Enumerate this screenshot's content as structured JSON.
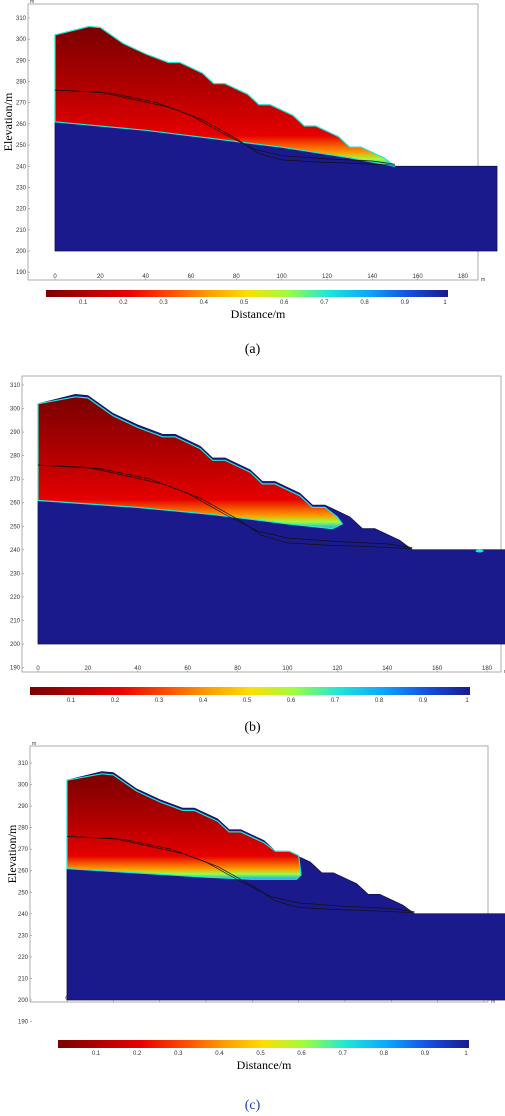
{
  "chart_data": [
    {
      "type": "heatmap",
      "caption": "(a)",
      "ylabel": "Elevation/m",
      "xlabel": "Distance/m",
      "x_unit": "m",
      "y_unit": "m",
      "xlim": [
        0,
        190
      ],
      "ylim": [
        190,
        310
      ],
      "x_ticks": [
        0,
        20,
        40,
        60,
        80,
        100,
        120,
        140,
        160,
        180
      ],
      "y_ticks": [
        190,
        200,
        210,
        220,
        230,
        240,
        250,
        260,
        270,
        280,
        290,
        300,
        310
      ],
      "colorbar_ticks": [
        "0.1",
        "0.2",
        "0.3",
        "0.4",
        "0.5",
        "0.6",
        "0.7",
        "0.8",
        "0.9",
        "1"
      ],
      "colormap_stops": [
        "#7a0000",
        "#b30000",
        "#e60000",
        "#ff4400",
        "#ff9900",
        "#ffdd00",
        "#9cff3c",
        "#1ee8d6",
        "#0aa8ff",
        "#1550e6",
        "#1a1a8c"
      ],
      "domain_outline": [
        [
          0,
          200
        ],
        [
          0,
          302
        ],
        [
          15,
          306
        ],
        [
          20,
          305.5
        ],
        [
          30,
          298
        ],
        [
          40,
          293
        ],
        [
          50,
          289
        ],
        [
          55,
          289
        ],
        [
          65,
          284
        ],
        [
          70,
          279
        ],
        [
          75,
          279
        ],
        [
          85,
          274
        ],
        [
          90,
          269
        ],
        [
          95,
          269
        ],
        [
          105,
          264
        ],
        [
          110,
          259
        ],
        [
          115,
          259
        ],
        [
          125,
          254
        ],
        [
          130,
          249
        ],
        [
          135,
          249
        ],
        [
          145,
          244
        ],
        [
          150,
          240
        ],
        [
          195,
          240
        ],
        [
          195,
          200
        ]
      ],
      "slip_surfaces": [
        [
          [
            0,
            276
          ],
          [
            20,
            275
          ],
          [
            50,
            268
          ],
          [
            65,
            262
          ],
          [
            80,
            253
          ],
          [
            90,
            246
          ],
          [
            100,
            243
          ],
          [
            115,
            242
          ],
          [
            130,
            241.5
          ],
          [
            150,
            240.5
          ]
        ],
        [
          [
            0,
            276
          ],
          [
            25,
            274.5
          ],
          [
            45,
            270
          ],
          [
            60,
            264
          ],
          [
            75,
            255
          ],
          [
            88,
            248
          ],
          [
            100,
            245
          ],
          [
            120,
            243.5
          ],
          [
            140,
            242.5
          ],
          [
            150,
            241
          ]
        ]
      ],
      "wet_region": [
        [
          0,
          302
        ],
        [
          15,
          306
        ],
        [
          20,
          305.5
        ],
        [
          30,
          298
        ],
        [
          40,
          293
        ],
        [
          50,
          289
        ],
        [
          55,
          289
        ],
        [
          65,
          284
        ],
        [
          70,
          279
        ],
        [
          75,
          279
        ],
        [
          85,
          274
        ],
        [
          90,
          269
        ],
        [
          95,
          269
        ],
        [
          105,
          264
        ],
        [
          110,
          259
        ],
        [
          115,
          259
        ],
        [
          125,
          254
        ],
        [
          130,
          249
        ],
        [
          135,
          249
        ],
        [
          145,
          244
        ],
        [
          150,
          240
        ],
        [
          130,
          244
        ],
        [
          100,
          249
        ],
        [
          70,
          253
        ],
        [
          40,
          257
        ],
        [
          0,
          261
        ]
      ],
      "isolated_spots": []
    },
    {
      "type": "heatmap",
      "caption": "(b)",
      "ylabel": "",
      "xlabel": "",
      "x_unit": "m",
      "y_unit": "",
      "xlim": [
        0,
        190
      ],
      "ylim": [
        190,
        310
      ],
      "x_ticks": [
        0,
        20,
        40,
        60,
        80,
        100,
        120,
        140,
        160,
        180
      ],
      "y_ticks": [
        190,
        200,
        210,
        220,
        230,
        240,
        250,
        260,
        270,
        280,
        290,
        300,
        310
      ],
      "colorbar_ticks": [
        "0.1",
        "0.2",
        "0.3",
        "0.4",
        "0.5",
        "0.6",
        "0.7",
        "0.8",
        "0.9",
        "1"
      ],
      "colormap_stops": [
        "#7a0000",
        "#b30000",
        "#e60000",
        "#ff4400",
        "#ff9900",
        "#ffdd00",
        "#9cff3c",
        "#1ee8d6",
        "#0aa8ff",
        "#1550e6",
        "#1a1a8c"
      ],
      "domain_outline": [
        [
          0,
          200
        ],
        [
          0,
          302
        ],
        [
          15,
          306
        ],
        [
          20,
          305.5
        ],
        [
          30,
          298
        ],
        [
          40,
          293
        ],
        [
          50,
          289
        ],
        [
          55,
          289
        ],
        [
          65,
          284
        ],
        [
          70,
          279
        ],
        [
          75,
          279
        ],
        [
          85,
          274
        ],
        [
          90,
          269
        ],
        [
          95,
          269
        ],
        [
          105,
          264
        ],
        [
          110,
          259
        ],
        [
          115,
          259
        ],
        [
          125,
          254
        ],
        [
          130,
          249
        ],
        [
          135,
          249
        ],
        [
          145,
          244
        ],
        [
          150,
          240
        ],
        [
          190,
          240
        ],
        [
          190,
          200
        ]
      ],
      "slip_surfaces": [
        [
          [
            0,
            276
          ],
          [
            20,
            275
          ],
          [
            50,
            268
          ],
          [
            65,
            262
          ],
          [
            80,
            253
          ],
          [
            90,
            246
          ],
          [
            100,
            243
          ],
          [
            115,
            242
          ],
          [
            130,
            241.5
          ],
          [
            150,
            240.5
          ]
        ],
        [
          [
            0,
            276
          ],
          [
            25,
            274.5
          ],
          [
            45,
            270
          ],
          [
            60,
            264
          ],
          [
            75,
            255
          ],
          [
            88,
            248
          ],
          [
            100,
            245
          ],
          [
            120,
            243.5
          ],
          [
            140,
            242.5
          ],
          [
            150,
            241
          ]
        ]
      ],
      "wet_region": [
        [
          0,
          302
        ],
        [
          15,
          305
        ],
        [
          20,
          304.5
        ],
        [
          30,
          297
        ],
        [
          40,
          292
        ],
        [
          50,
          288
        ],
        [
          55,
          288
        ],
        [
          65,
          283
        ],
        [
          70,
          278
        ],
        [
          75,
          278
        ],
        [
          85,
          273
        ],
        [
          90,
          268
        ],
        [
          95,
          268
        ],
        [
          105,
          263
        ],
        [
          110,
          258
        ],
        [
          115,
          258
        ],
        [
          120,
          254
        ],
        [
          122,
          251
        ],
        [
          118,
          249
        ],
        [
          100,
          251
        ],
        [
          70,
          255
        ],
        [
          40,
          258
        ],
        [
          0,
          261
        ]
      ],
      "isolated_spots": [
        [
          177,
          239.5
        ]
      ]
    },
    {
      "type": "heatmap",
      "caption": "(c)",
      "ylabel": "Elevation/m",
      "xlabel": "Distance/m",
      "x_unit": "m",
      "y_unit": "m",
      "xlim": [
        0,
        190
      ],
      "ylim": [
        190,
        310
      ],
      "x_ticks": [
        0,
        20,
        40,
        60,
        80,
        100,
        120,
        140,
        160,
        180
      ],
      "y_ticks": [
        190,
        200,
        210,
        220,
        230,
        240,
        250,
        260,
        270,
        280,
        290,
        300,
        310
      ],
      "colorbar_ticks": [
        "0.1",
        "0.2",
        "0.3",
        "0.4",
        "0.5",
        "0.6",
        "0.7",
        "0.8",
        "0.9",
        "1"
      ],
      "colormap_stops": [
        "#7a0000",
        "#b30000",
        "#e60000",
        "#ff4400",
        "#ff9900",
        "#ffdd00",
        "#9cff3c",
        "#1ee8d6",
        "#0aa8ff",
        "#1550e6",
        "#1a1a8c"
      ],
      "domain_outline": [
        [
          0,
          200
        ],
        [
          0,
          302
        ],
        [
          15,
          306
        ],
        [
          20,
          305.5
        ],
        [
          30,
          298
        ],
        [
          40,
          293
        ],
        [
          50,
          289
        ],
        [
          55,
          289
        ],
        [
          65,
          284
        ],
        [
          70,
          279
        ],
        [
          75,
          279
        ],
        [
          85,
          274
        ],
        [
          90,
          269
        ],
        [
          95,
          269
        ],
        [
          105,
          264
        ],
        [
          110,
          259
        ],
        [
          115,
          259
        ],
        [
          125,
          254
        ],
        [
          130,
          249
        ],
        [
          135,
          249
        ],
        [
          145,
          244
        ],
        [
          150,
          240
        ],
        [
          195,
          240
        ],
        [
          195,
          200
        ]
      ],
      "slip_surfaces": [
        [
          [
            0,
            276
          ],
          [
            20,
            275
          ],
          [
            50,
            268
          ],
          [
            65,
            262
          ],
          [
            80,
            253
          ],
          [
            90,
            246
          ],
          [
            100,
            243
          ],
          [
            115,
            242
          ],
          [
            130,
            241.5
          ],
          [
            150,
            240.5
          ]
        ],
        [
          [
            0,
            276
          ],
          [
            25,
            274.5
          ],
          [
            45,
            270
          ],
          [
            60,
            264
          ],
          [
            75,
            255
          ],
          [
            88,
            248
          ],
          [
            100,
            245
          ],
          [
            120,
            243.5
          ],
          [
            140,
            242.5
          ],
          [
            150,
            241
          ]
        ]
      ],
      "wet_region": [
        [
          0,
          302
        ],
        [
          15,
          305
        ],
        [
          20,
          304.5
        ],
        [
          30,
          297
        ],
        [
          40,
          292
        ],
        [
          50,
          288
        ],
        [
          55,
          288
        ],
        [
          65,
          283
        ],
        [
          70,
          278
        ],
        [
          75,
          278
        ],
        [
          85,
          273
        ],
        [
          90,
          269
        ],
        [
          96,
          269
        ],
        [
          100,
          267
        ],
        [
          101,
          258
        ],
        [
          99,
          256
        ],
        [
          80,
          256
        ],
        [
          60,
          257
        ],
        [
          30,
          259
        ],
        [
          0,
          261
        ]
      ],
      "isolated_spots": []
    }
  ]
}
